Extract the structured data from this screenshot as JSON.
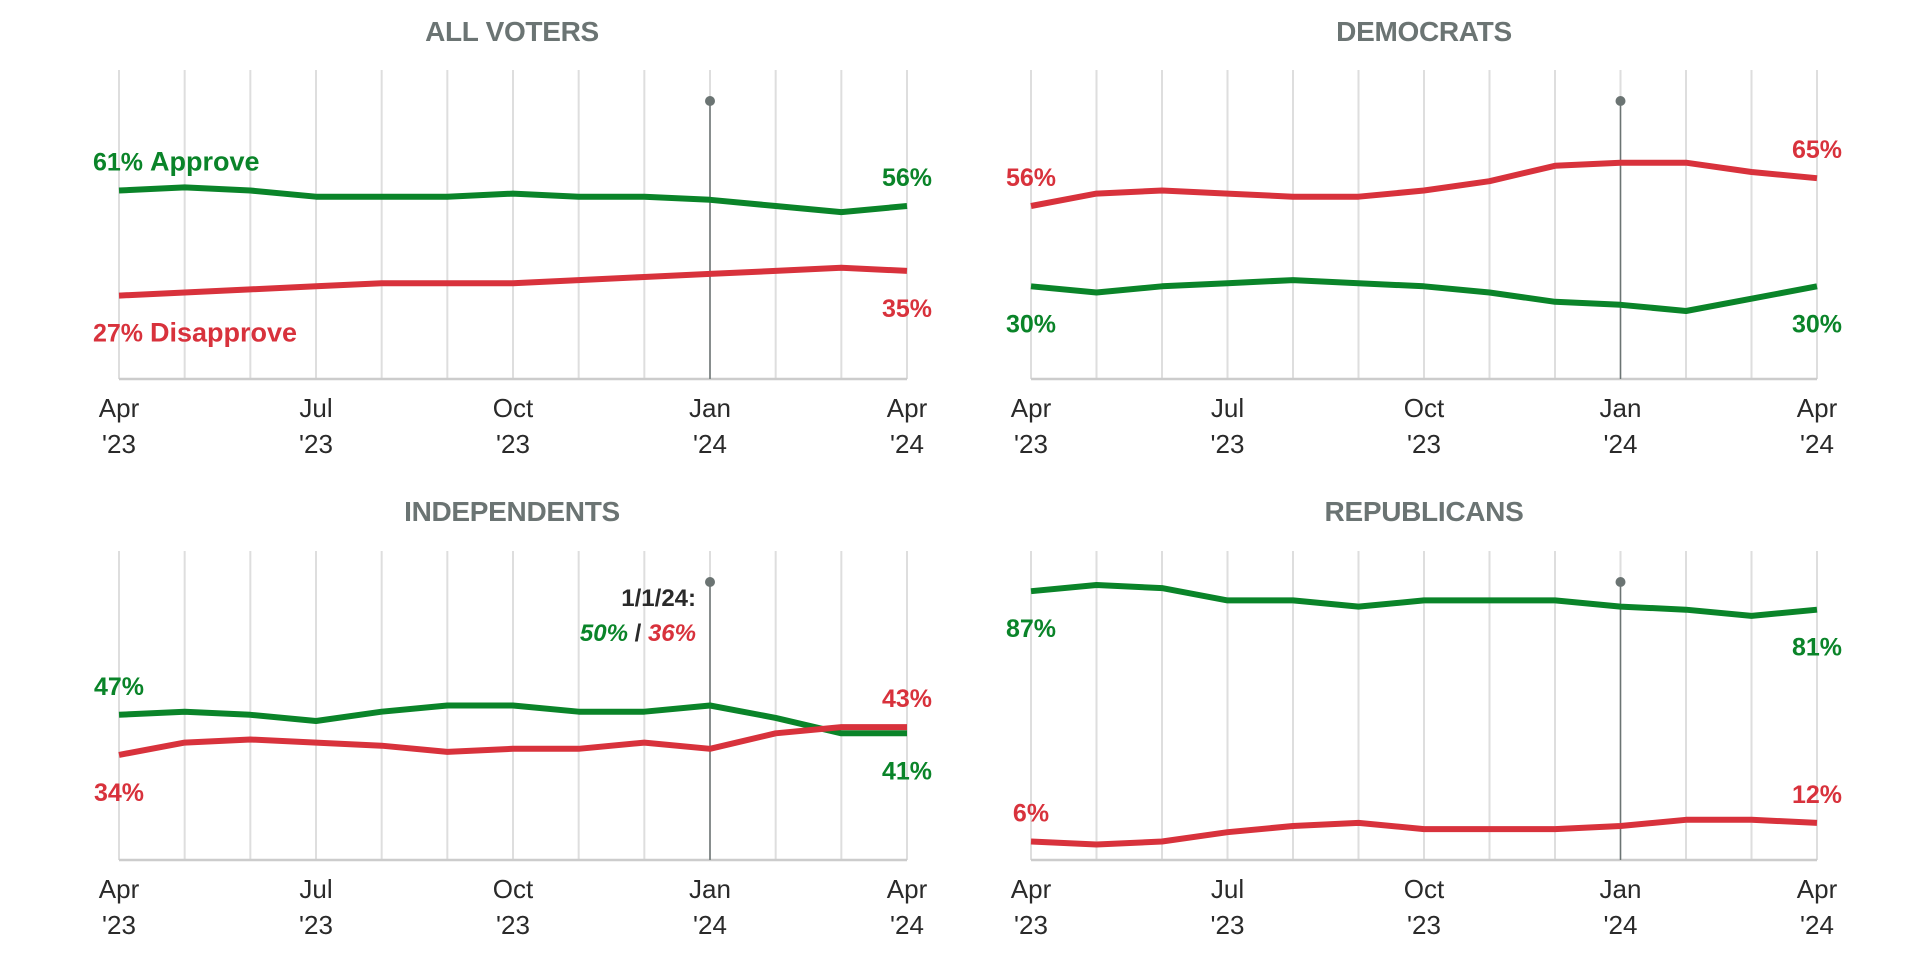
{
  "colors": {
    "approve": "#0a8429",
    "disapprove": "#d8323c",
    "title": "#6b7473",
    "gridline": "#dedede",
    "axis": "#cccccc",
    "marker": "#6b7473",
    "tick_text": "#2a2a2a"
  },
  "chart_data": [
    {
      "type": "line",
      "title": "ALL VOTERS",
      "x": [
        "Apr '23",
        "May '23",
        "Jun '23",
        "Jul '23",
        "Aug '23",
        "Sep '23",
        "Oct '23",
        "Nov '23",
        "Dec '23",
        "Jan '24",
        "Feb '24",
        "Mar '24",
        "Apr '24"
      ],
      "tick_labels": [
        {
          "index": 0,
          "line1": "Apr",
          "line2": "'23"
        },
        {
          "index": 3,
          "line1": "Jul",
          "line2": "'23"
        },
        {
          "index": 6,
          "line1": "Oct",
          "line2": "'23"
        },
        {
          "index": 9,
          "line1": "Jan",
          "line2": "'24"
        },
        {
          "index": 12,
          "line1": "Apr",
          "line2": "'24"
        }
      ],
      "ylim": [
        0,
        100
      ],
      "grid": "vertical",
      "marker": {
        "index": 9,
        "label": "Jan '24"
      },
      "series": [
        {
          "name": "Approve",
          "color_key": "approve",
          "values": [
            61,
            62,
            61,
            59,
            59,
            59,
            60,
            59,
            59,
            58,
            56,
            54,
            56
          ]
        },
        {
          "name": "Disapprove",
          "color_key": "disapprove",
          "values": [
            27,
            28,
            29,
            30,
            31,
            31,
            31,
            32,
            33,
            34,
            35,
            36,
            35
          ]
        }
      ],
      "labels": [
        {
          "series": 0,
          "end": "start",
          "value": "61%",
          "name": "Approve",
          "position": "above"
        },
        {
          "series": 1,
          "end": "start",
          "value": "27%",
          "name": "Disapprove",
          "position": "below"
        },
        {
          "series": 0,
          "end": "end",
          "value": "56%",
          "position": "above"
        },
        {
          "series": 1,
          "end": "end",
          "value": "35%",
          "position": "below"
        }
      ]
    },
    {
      "type": "line",
      "title": "DEMOCRATS",
      "x": [
        "Apr '23",
        "May '23",
        "Jun '23",
        "Jul '23",
        "Aug '23",
        "Sep '23",
        "Oct '23",
        "Nov '23",
        "Dec '23",
        "Jan '24",
        "Feb '24",
        "Mar '24",
        "Apr '24"
      ],
      "tick_labels": [
        {
          "index": 0,
          "line1": "Apr",
          "line2": "'23"
        },
        {
          "index": 3,
          "line1": "Jul",
          "line2": "'23"
        },
        {
          "index": 6,
          "line1": "Oct",
          "line2": "'23"
        },
        {
          "index": 9,
          "line1": "Jan",
          "line2": "'24"
        },
        {
          "index": 12,
          "line1": "Apr",
          "line2": "'24"
        }
      ],
      "ylim": [
        0,
        100
      ],
      "grid": "vertical",
      "marker": {
        "index": 9,
        "label": "Jan '24"
      },
      "series": [
        {
          "name": "Approve",
          "color_key": "approve",
          "values": [
            30,
            28,
            30,
            31,
            32,
            31,
            30,
            28,
            25,
            24,
            22,
            26,
            30
          ]
        },
        {
          "name": "Disapprove",
          "color_key": "disapprove",
          "values": [
            56,
            60,
            61,
            60,
            59,
            59,
            61,
            64,
            69,
            70,
            70,
            67,
            65
          ]
        }
      ],
      "labels": [
        {
          "series": 1,
          "end": "start",
          "value": "56%",
          "position": "above"
        },
        {
          "series": 0,
          "end": "start",
          "value": "30%",
          "position": "below"
        },
        {
          "series": 1,
          "end": "end",
          "value": "65%",
          "position": "above"
        },
        {
          "series": 0,
          "end": "end",
          "value": "30%",
          "position": "below"
        }
      ]
    },
    {
      "type": "line",
      "title": "INDEPENDENTS",
      "x": [
        "Apr '23",
        "May '23",
        "Jun '23",
        "Jul '23",
        "Aug '23",
        "Sep '23",
        "Oct '23",
        "Nov '23",
        "Dec '23",
        "Jan '24",
        "Feb '24",
        "Mar '24",
        "Apr '24"
      ],
      "tick_labels": [
        {
          "index": 0,
          "line1": "Apr",
          "line2": "'23"
        },
        {
          "index": 3,
          "line1": "Jul",
          "line2": "'23"
        },
        {
          "index": 6,
          "line1": "Oct",
          "line2": "'23"
        },
        {
          "index": 9,
          "line1": "Jan",
          "line2": "'24"
        },
        {
          "index": 12,
          "line1": "Apr",
          "line2": "'24"
        }
      ],
      "ylim": [
        0,
        100
      ],
      "grid": "vertical",
      "marker": {
        "index": 9,
        "label": "Jan '24"
      },
      "annotation": {
        "date": "1/1/24:",
        "approve": "50%",
        "separator": " / ",
        "disapprove": "36%"
      },
      "series": [
        {
          "name": "Approve",
          "color_key": "approve",
          "values": [
            47,
            48,
            47,
            45,
            48,
            50,
            50,
            48,
            48,
            50,
            46,
            41,
            41
          ]
        },
        {
          "name": "Disapprove",
          "color_key": "disapprove",
          "values": [
            34,
            38,
            39,
            38,
            37,
            35,
            36,
            36,
            38,
            36,
            41,
            43,
            43
          ]
        }
      ],
      "labels": [
        {
          "series": 0,
          "end": "start",
          "value": "47%",
          "position": "above"
        },
        {
          "series": 1,
          "end": "start",
          "value": "34%",
          "position": "below"
        },
        {
          "series": 1,
          "end": "end",
          "value": "43%",
          "position": "above"
        },
        {
          "series": 0,
          "end": "end",
          "value": "41%",
          "position": "below"
        }
      ]
    },
    {
      "type": "line",
      "title": "REPUBLICANS",
      "x": [
        "Apr '23",
        "May '23",
        "Jun '23",
        "Jul '23",
        "Aug '23",
        "Sep '23",
        "Oct '23",
        "Nov '23",
        "Dec '23",
        "Jan '24",
        "Feb '24",
        "Mar '24",
        "Apr '24"
      ],
      "tick_labels": [
        {
          "index": 0,
          "line1": "Apr",
          "line2": "'23"
        },
        {
          "index": 3,
          "line1": "Jul",
          "line2": "'23"
        },
        {
          "index": 6,
          "line1": "Oct",
          "line2": "'23"
        },
        {
          "index": 9,
          "line1": "Jan",
          "line2": "'24"
        },
        {
          "index": 12,
          "line1": "Apr",
          "line2": "'24"
        }
      ],
      "ylim": [
        0,
        100
      ],
      "grid": "vertical",
      "marker": {
        "index": 9,
        "label": "Jan '24"
      },
      "series": [
        {
          "name": "Approve",
          "color_key": "approve",
          "values": [
            87,
            89,
            88,
            84,
            84,
            82,
            84,
            84,
            84,
            82,
            81,
            79,
            81
          ]
        },
        {
          "name": "Disapprove",
          "color_key": "disapprove",
          "values": [
            6,
            5,
            6,
            9,
            11,
            12,
            10,
            10,
            10,
            11,
            13,
            13,
            12
          ]
        }
      ],
      "labels": [
        {
          "series": 0,
          "end": "start",
          "value": "87%",
          "position": "below"
        },
        {
          "series": 1,
          "end": "start",
          "value": "6%",
          "position": "above"
        },
        {
          "series": 0,
          "end": "end",
          "value": "81%",
          "position": "below"
        },
        {
          "series": 1,
          "end": "end",
          "value": "12%",
          "position": "above"
        }
      ]
    }
  ]
}
